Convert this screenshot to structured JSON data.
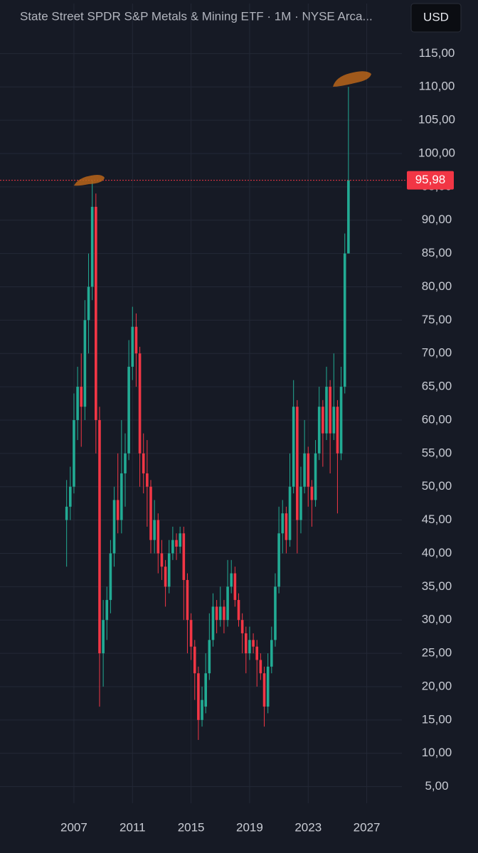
{
  "chart_data": {
    "type": "candlestick",
    "title": "State Street SPDR S&P Metals & Mining ETF · 1M · NYSE Arca...",
    "currency": "USD",
    "x": [
      2006.5,
      2006.75,
      2007,
      2007.25,
      2007.5,
      2007.75,
      2008,
      2008.25,
      2008.5,
      2008.75,
      2009,
      2009.25,
      2009.5,
      2009.75,
      2010,
      2010.25,
      2010.5,
      2010.75,
      2011,
      2011.25,
      2011.5,
      2011.75,
      2012,
      2012.25,
      2012.5,
      2012.75,
      2013,
      2013.25,
      2013.5,
      2013.75,
      2014,
      2014.25,
      2014.5,
      2014.75,
      2015,
      2015.25,
      2015.5,
      2015.75,
      2016,
      2016.25,
      2016.5,
      2016.75,
      2017,
      2017.25,
      2017.5,
      2017.75,
      2018,
      2018.25,
      2018.5,
      2018.75,
      2019,
      2019.25,
      2019.5,
      2019.75,
      2020,
      2020.25,
      2020.5,
      2020.75,
      2021,
      2021.25,
      2021.5,
      2021.75,
      2022,
      2022.25,
      2022.5,
      2022.75,
      2023,
      2023.25,
      2023.5,
      2023.75,
      2024,
      2024.25,
      2024.5,
      2024.75,
      2025,
      2025.25,
      2025.5,
      2025.75
    ],
    "open": [
      45,
      47,
      50,
      60,
      65,
      62,
      75,
      80,
      92,
      60,
      25,
      30,
      33,
      40,
      48,
      45,
      52,
      55,
      68,
      74,
      70,
      55,
      52,
      50,
      42,
      45,
      40,
      38,
      35,
      40,
      42,
      41,
      43,
      36,
      30,
      26,
      22,
      15,
      17,
      22,
      27,
      32,
      30,
      32,
      30,
      35,
      37,
      33,
      30,
      28,
      25,
      27,
      26,
      24,
      22,
      17,
      23,
      27,
      35,
      43,
      46,
      42,
      50,
      62,
      45,
      50,
      55,
      50,
      48,
      55,
      62,
      58,
      65,
      58,
      62,
      55,
      65,
      85
    ],
    "high": [
      51,
      53,
      64,
      68,
      70,
      78,
      85,
      96,
      94,
      62,
      33,
      35,
      42,
      50,
      55,
      60,
      58,
      72,
      77,
      76,
      71,
      58,
      57,
      51,
      48,
      46,
      42,
      39,
      42,
      44,
      43,
      44,
      44,
      37,
      31,
      27,
      23,
      20,
      25,
      31,
      34,
      33,
      35,
      33,
      39,
      39,
      38,
      34,
      31,
      29,
      29,
      28,
      27,
      25,
      23,
      25,
      29,
      37,
      47,
      48,
      47,
      55,
      66,
      63,
      53,
      60,
      56,
      51,
      57,
      65,
      63,
      68,
      66,
      70,
      63,
      68,
      88,
      110
    ],
    "low": [
      38,
      45,
      49,
      57,
      56,
      60,
      70,
      78,
      55,
      17,
      20,
      27,
      31,
      38,
      43,
      43,
      47,
      54,
      66,
      65,
      50,
      49,
      44,
      40,
      40,
      37,
      36,
      32,
      34,
      39,
      39,
      40,
      30,
      25,
      24,
      18,
      12,
      14,
      16,
      21,
      26,
      28,
      29,
      28,
      29,
      34,
      32,
      29,
      25,
      22,
      24,
      25,
      20,
      21,
      14,
      16,
      22,
      26,
      34,
      40,
      40,
      41,
      49,
      40,
      43,
      49,
      47,
      44,
      47,
      54,
      53,
      57,
      52,
      57,
      46,
      54,
      64,
      85
    ],
    "close": [
      47,
      50,
      60,
      65,
      62,
      75,
      80,
      92,
      60,
      25,
      30,
      33,
      40,
      48,
      45,
      52,
      55,
      68,
      74,
      70,
      55,
      52,
      50,
      42,
      45,
      40,
      38,
      35,
      40,
      42,
      41,
      43,
      36,
      30,
      26,
      22,
      15,
      18,
      22,
      27,
      32,
      30,
      32,
      30,
      35,
      37,
      33,
      30,
      28,
      25,
      27,
      26,
      24,
      22,
      17,
      23,
      27,
      35,
      43,
      46,
      42,
      50,
      62,
      45,
      50,
      55,
      50,
      48,
      55,
      62,
      58,
      65,
      58,
      62,
      55,
      65,
      85,
      95.98
    ],
    "up_color": "#22ab94",
    "down_color": "#f23645",
    "last_price": {
      "value": 95.98,
      "label": "95,98"
    },
    "xlim": [
      2001.95,
      2029.4
    ],
    "xticks": [
      2007,
      2011,
      2015,
      2019,
      2023,
      2027
    ],
    "ylim": [
      2.5,
      122.5
    ],
    "yticks": [
      {
        "value": 5,
        "label": "5,00"
      },
      {
        "value": 10,
        "label": "10,00"
      },
      {
        "value": 15,
        "label": "15,00"
      },
      {
        "value": 20,
        "label": "20,00"
      },
      {
        "value": 25,
        "label": "25,00"
      },
      {
        "value": 30,
        "label": "30,00"
      },
      {
        "value": 35,
        "label": "35,00"
      },
      {
        "value": 40,
        "label": "40,00"
      },
      {
        "value": 45,
        "label": "45,00"
      },
      {
        "value": 50,
        "label": "50,00"
      },
      {
        "value": 55,
        "label": "55,00"
      },
      {
        "value": 60,
        "label": "60,00"
      },
      {
        "value": 65,
        "label": "65,00"
      },
      {
        "value": 70,
        "label": "70,00"
      },
      {
        "value": 75,
        "label": "75,00"
      },
      {
        "value": 80,
        "label": "80,00"
      },
      {
        "value": 85,
        "label": "85,00"
      },
      {
        "value": 90,
        "label": "90,00"
      },
      {
        "value": 95,
        "label": "95,00"
      },
      {
        "value": 100,
        "label": "100,00"
      },
      {
        "value": 105,
        "label": "105,00"
      },
      {
        "value": 110,
        "label": "110,00"
      },
      {
        "value": 115,
        "label": "115,00"
      }
    ],
    "grid": true
  }
}
